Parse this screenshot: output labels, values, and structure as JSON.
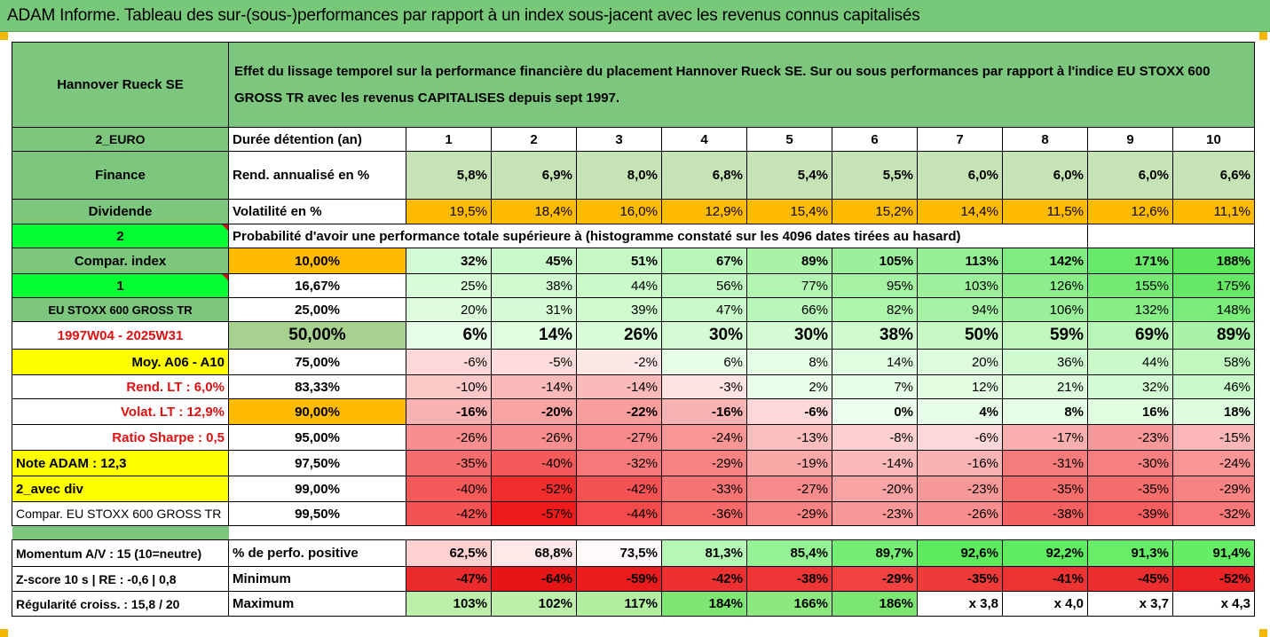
{
  "title": "ADAM Informe. Tableau des sur-(sous-)performances par rapport à un index sous-jacent avec les revenus connus capitalisés",
  "company": "Hannover Rueck SE",
  "description": "Effet du lissage temporel sur la performance financière du placement Hannover Rueck SE. Sur ou sous performances par rapport à l'indice EU STOXX 600 GROSS TR avec les revenus CAPITALISES depuis sept 1997.",
  "side_labels": [
    "2_EURO",
    "Finance",
    "Dividende",
    "2",
    "Compar. index",
    "1",
    "EU STOXX 600 GROSS TR",
    "1997W04 - 2025W31",
    "Moy. A06 - A10",
    "Rend. LT :   6,0%",
    "Volat. LT :   12,9%",
    "Ratio Sharpe :   0,5",
    "Note ADAM : 12,3",
    "2_avec div",
    "Compar. EU STOXX 600 GROSS TR"
  ],
  "duration_label": "Durée détention (an)",
  "years": [
    "1",
    "2",
    "3",
    "4",
    "5",
    "6",
    "7",
    "8",
    "9",
    "10"
  ],
  "return_label": "Rend. annualisé en %",
  "returns": [
    "5,8%",
    "6,9%",
    "8,0%",
    "6,8%",
    "5,4%",
    "5,5%",
    "6,0%",
    "6,0%",
    "6,0%",
    "6,6%"
  ],
  "volatility_label": "Volatilité en %",
  "volatility": [
    "19,5%",
    "18,4%",
    "16,0%",
    "12,9%",
    "15,4%",
    "15,2%",
    "14,4%",
    "11,5%",
    "12,6%",
    "11,1%"
  ],
  "probability_label": "Probabilité d'avoir une performance totale supérieure à (histogramme constaté sur les 4096 dates tirées au hasard)",
  "percentile_rows": [
    {
      "p": "10,00%",
      "v": [
        "32%",
        "45%",
        "51%",
        "67%",
        "89%",
        "105%",
        "113%",
        "142%",
        "171%",
        "188%"
      ]
    },
    {
      "p": "16,67%",
      "v": [
        "25%",
        "38%",
        "44%",
        "56%",
        "77%",
        "95%",
        "103%",
        "126%",
        "155%",
        "175%"
      ]
    },
    {
      "p": "25,00%",
      "v": [
        "20%",
        "31%",
        "39%",
        "47%",
        "66%",
        "82%",
        "94%",
        "106%",
        "132%",
        "148%"
      ]
    },
    {
      "p": "50,00%",
      "v": [
        "6%",
        "14%",
        "26%",
        "30%",
        "30%",
        "38%",
        "50%",
        "59%",
        "69%",
        "89%"
      ]
    },
    {
      "p": "75,00%",
      "v": [
        "-6%",
        "-5%",
        "-2%",
        "6%",
        "8%",
        "14%",
        "20%",
        "36%",
        "44%",
        "58%"
      ]
    },
    {
      "p": "83,33%",
      "v": [
        "-10%",
        "-14%",
        "-14%",
        "-3%",
        "2%",
        "7%",
        "12%",
        "21%",
        "32%",
        "46%"
      ]
    },
    {
      "p": "90,00%",
      "v": [
        "-16%",
        "-20%",
        "-22%",
        "-16%",
        "-6%",
        "0%",
        "4%",
        "8%",
        "16%",
        "18%"
      ]
    },
    {
      "p": "95,00%",
      "v": [
        "-26%",
        "-26%",
        "-27%",
        "-24%",
        "-13%",
        "-8%",
        "-6%",
        "-17%",
        "-23%",
        "-15%"
      ]
    },
    {
      "p": "97,50%",
      "v": [
        "-35%",
        "-40%",
        "-32%",
        "-29%",
        "-19%",
        "-14%",
        "-16%",
        "-31%",
        "-30%",
        "-24%"
      ]
    },
    {
      "p": "99,00%",
      "v": [
        "-40%",
        "-52%",
        "-42%",
        "-33%",
        "-27%",
        "-20%",
        "-23%",
        "-35%",
        "-35%",
        "-29%"
      ]
    },
    {
      "p": "99,50%",
      "v": [
        "-42%",
        "-57%",
        "-44%",
        "-36%",
        "-29%",
        "-23%",
        "-26%",
        "-38%",
        "-39%",
        "-32%"
      ]
    }
  ],
  "bottom": {
    "momentum_label": "Momentum A/V : 15 (10=neutre)",
    "positive_label": "% de perfo. positive",
    "positive": [
      "62,5%",
      "68,8%",
      "73,5%",
      "81,3%",
      "85,4%",
      "89,7%",
      "92,6%",
      "92,2%",
      "91,3%",
      "91,4%"
    ],
    "zscore_label": "Z-score 10 s  |  RE : -0,6  |  0,8",
    "minimum_label": "Minimum",
    "minimum": [
      "-47%",
      "-64%",
      "-59%",
      "-42%",
      "-38%",
      "-29%",
      "-35%",
      "-41%",
      "-45%",
      "-52%"
    ],
    "regularity_label": "Régularité croiss. : 15,8 / 20",
    "maximum_label": "Maximum",
    "maximum": [
      "103%",
      "102%",
      "117%",
      "184%",
      "166%",
      "186%",
      "x 3,8",
      "x 4,0",
      "x 3,7",
      "x 4,3"
    ]
  },
  "colors": {
    "header_green": "#7dc67e",
    "bright_green": "#00ff33",
    "yellow": "#ffff00",
    "orange": "#ffbb00",
    "red_text": "#e01010"
  }
}
